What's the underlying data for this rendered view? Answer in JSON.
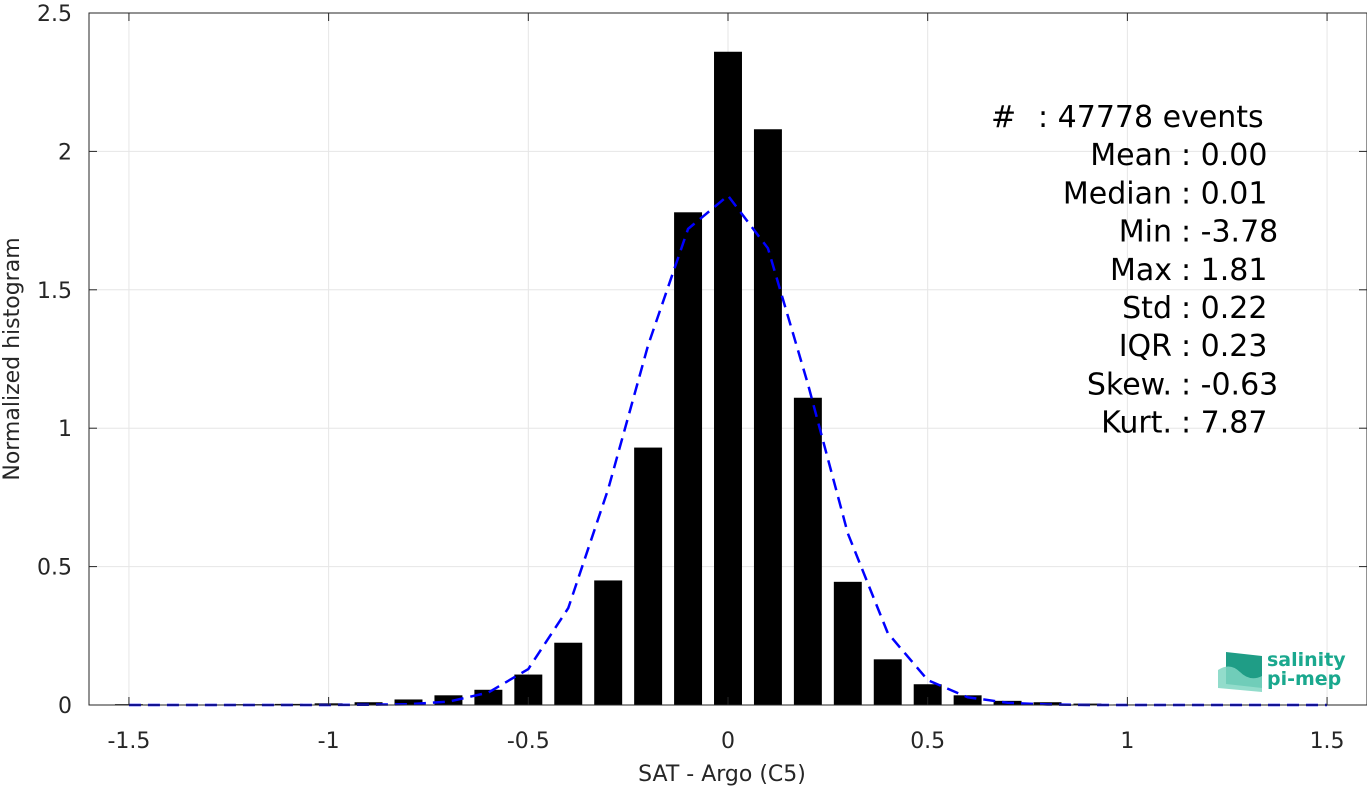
{
  "chart_data": {
    "type": "bar",
    "xlabel": "SAT - Argo (C5)",
    "ylabel": "Normalized histogram",
    "xlim": [
      -1.6,
      1.6
    ],
    "ylim": [
      0,
      2.5
    ],
    "xticks": [
      -1.5,
      -1,
      -0.5,
      0,
      0.5,
      1,
      1.5
    ],
    "xtick_labels": [
      "-1.5",
      "-1",
      "-0.5",
      "0",
      "0.5",
      "1",
      "1.5"
    ],
    "yticks": [
      0,
      0.5,
      1,
      1.5,
      2,
      2.5
    ],
    "ytick_labels": [
      "0",
      "0.5",
      "1",
      "1.5",
      "2",
      "2.5"
    ],
    "grid": true,
    "bar_color": "#000000",
    "series": [
      {
        "type": "bar",
        "x": [
          -1.5,
          -1.4,
          -1.3,
          -1.2,
          -1.1,
          -1.0,
          -0.9,
          -0.8,
          -0.7,
          -0.6,
          -0.5,
          -0.4,
          -0.3,
          -0.2,
          -0.1,
          0.0,
          0.1,
          0.2,
          0.3,
          0.4,
          0.5,
          0.6,
          0.7,
          0.8,
          0.9,
          1.0,
          1.1,
          1.2,
          1.3,
          1.4,
          1.5
        ],
        "values": [
          0.003,
          0.001,
          0.001,
          0.003,
          0.004,
          0.006,
          0.01,
          0.02,
          0.035,
          0.055,
          0.11,
          0.225,
          0.45,
          0.93,
          1.78,
          2.36,
          2.08,
          1.11,
          0.445,
          0.165,
          0.075,
          0.035,
          0.015,
          0.01,
          0.005,
          0.002,
          0.001,
          0.001,
          0.0,
          0.0,
          0.0
        ]
      },
      {
        "type": "line",
        "style": "dashed",
        "color": "#0000ff",
        "x": [
          -1.5,
          -1.4,
          -1.3,
          -1.2,
          -1.1,
          -1.0,
          -0.9,
          -0.8,
          -0.7,
          -0.6,
          -0.5,
          -0.4,
          -0.3,
          -0.2,
          -0.1,
          0.0,
          0.1,
          0.2,
          0.3,
          0.4,
          0.5,
          0.6,
          0.7,
          0.8,
          0.9,
          1.0,
          1.1,
          1.2,
          1.3,
          1.4,
          1.5
        ],
        "values": [
          0.0,
          0.0,
          0.0,
          0.0,
          0.0,
          0.0,
          0.001,
          0.003,
          0.012,
          0.045,
          0.13,
          0.35,
          0.78,
          1.3,
          1.72,
          1.84,
          1.65,
          1.16,
          0.62,
          0.26,
          0.09,
          0.028,
          0.008,
          0.002,
          0.0,
          0.0,
          0.0,
          0.0,
          0.0,
          0.0,
          0.0
        ]
      }
    ],
    "annotation": {
      "rows": [
        {
          "label": "#  ",
          "value": ": 47778 events"
        },
        {
          "label": "Mean",
          "value": ": 0.00"
        },
        {
          "label": "Median",
          "value": ": 0.01"
        },
        {
          "label": "Min",
          "value": ": -3.78"
        },
        {
          "label": "Max",
          "value": ": 1.81"
        },
        {
          "label": "Std",
          "value": ": 0.22"
        },
        {
          "label": "IQR",
          "value": ": 0.23"
        },
        {
          "label": "Skew.",
          "value": ": -0.63"
        },
        {
          "label": "Kurt.",
          "value": ": 7.87"
        }
      ],
      "placement": "top-right"
    }
  },
  "logo": {
    "line1": "salinity",
    "line2": "pi-mep",
    "color": "#1aa88e",
    "placement": "bottom-right"
  }
}
